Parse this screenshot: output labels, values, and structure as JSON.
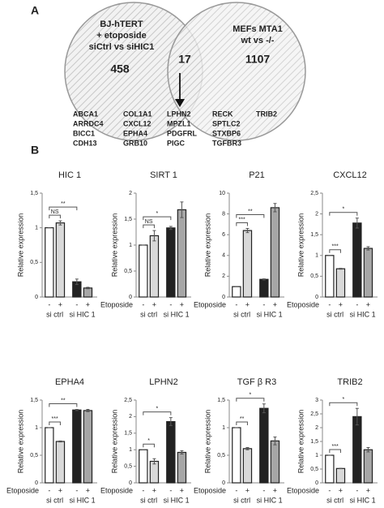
{
  "panel_labels": [
    "A",
    "B"
  ],
  "venn": {
    "left": {
      "label": [
        "BJ-hTERT",
        "+ etoposide",
        "siCtrl vs siHIC1"
      ],
      "count": "458"
    },
    "overlap": {
      "count": "17"
    },
    "right": {
      "label": [
        "MEFs MTA1",
        "wt vs -/-"
      ],
      "count": "1107"
    },
    "genes": [
      [
        "ABCA1",
        "ARRDC4",
        "BICC1",
        "CDH13"
      ],
      [
        "COL1A1",
        "CXCL12",
        "EPHA4",
        "GRB10"
      ],
      [
        "LPHN2",
        "MPZL1",
        "PDGFRL",
        "PIGC"
      ],
      [
        "RECK",
        "SPTLC2",
        "STXBP6",
        "TGFBR3"
      ],
      [
        "TRIB2"
      ]
    ]
  },
  "chart_data": [
    {
      "type": "bar",
      "title": "HIC 1",
      "ylabel": "Relative expression",
      "categories": [
        "-",
        "+",
        "-",
        "+"
      ],
      "groups": [
        "si ctrl",
        "si HIC 1"
      ],
      "values": [
        1.0,
        1.07,
        0.22,
        0.13
      ],
      "errors": [
        0,
        0.03,
        0.04,
        0.01
      ],
      "colors": [
        "#ffffff",
        "#d9d9d9",
        "#222222",
        "#a6a6a6"
      ],
      "significance": [
        "NS",
        "**"
      ],
      "ylim": [
        0,
        1.5
      ],
      "yticks": [
        0,
        {
          "value": 0.5,
          "label": "0,5"
        },
        1,
        {
          "value": 1.5,
          "label": "1,5"
        }
      ]
    },
    {
      "type": "bar",
      "title": "SIRT 1",
      "ylabel": "Relative expression",
      "x_label": "Etoposide",
      "categories": [
        "-",
        "+",
        "-",
        "+"
      ],
      "groups": [
        "si ctrl",
        "si HIC 1"
      ],
      "values": [
        1.0,
        1.18,
        1.33,
        1.68
      ],
      "errors": [
        0,
        0.1,
        0.03,
        0.15
      ],
      "colors": [
        "#ffffff",
        "#d9d9d9",
        "#222222",
        "#a6a6a6"
      ],
      "significance": [
        "NS",
        "*"
      ],
      "ylim": [
        0,
        2
      ],
      "yticks": [
        0,
        {
          "value": 0.5,
          "label": "0,5"
        },
        1,
        {
          "value": 1.5,
          "label": "1,5"
        },
        2
      ]
    },
    {
      "type": "bar",
      "title": "P21",
      "ylabel": "Relative expression",
      "x_label": "Etoposide",
      "categories": [
        "-",
        "+",
        "-",
        "+"
      ],
      "groups": [
        "si ctrl",
        "si HIC 1"
      ],
      "values": [
        1.0,
        6.4,
        1.7,
        8.6
      ],
      "errors": [
        0,
        0.2,
        0.05,
        0.4
      ],
      "colors": [
        "#ffffff",
        "#d9d9d9",
        "#222222",
        "#a6a6a6"
      ],
      "significance": [
        "***",
        "**"
      ],
      "ylim": [
        0,
        10
      ],
      "yticks": [
        0,
        2,
        4,
        6,
        8,
        10
      ]
    },
    {
      "type": "bar",
      "title": "CXCL12",
      "ylabel": "Relative expression",
      "x_label": "Etoposide",
      "categories": [
        "-",
        "+",
        "-",
        "+"
      ],
      "groups": [
        "si ctrl",
        "si HIC 1"
      ],
      "values": [
        1.0,
        0.68,
        1.78,
        1.17
      ],
      "errors": [
        0,
        0.01,
        0.12,
        0.04
      ],
      "colors": [
        "#ffffff",
        "#d9d9d9",
        "#222222",
        "#a6a6a6"
      ],
      "significance": [
        "***",
        "*"
      ],
      "ylim": [
        0,
        2.5
      ],
      "yticks": [
        0,
        {
          "value": 0.5,
          "label": "0,5"
        },
        1,
        {
          "value": 1.5,
          "label": "1,5"
        },
        2,
        {
          "value": 2.5,
          "label": "2,5"
        }
      ]
    },
    {
      "type": "bar",
      "title": "EPHA4",
      "ylabel": "Relative expression",
      "x_label": "Etoposide",
      "categories": [
        "-",
        "+",
        "-",
        "+"
      ],
      "groups": [
        "si ctrl",
        "si HIC 1"
      ],
      "values": [
        1.0,
        0.75,
        1.32,
        1.31
      ],
      "errors": [
        0,
        0.01,
        0.01,
        0.02
      ],
      "colors": [
        "#ffffff",
        "#d9d9d9",
        "#222222",
        "#a6a6a6"
      ],
      "significance": [
        "***",
        "**"
      ],
      "ylim": [
        0,
        1.5
      ],
      "yticks": [
        0,
        {
          "value": 0.5,
          "label": "0,5"
        },
        1,
        {
          "value": 1.5,
          "label": "1,5"
        }
      ]
    },
    {
      "type": "bar",
      "title": "LPHN2",
      "ylabel": "Relative expression",
      "x_label": "Etoposide",
      "categories": [
        "-",
        "+",
        "-",
        "+"
      ],
      "groups": [
        "si ctrl",
        "si HIC 1"
      ],
      "values": [
        1.0,
        0.65,
        1.85,
        0.92
      ],
      "errors": [
        0,
        0.08,
        0.12,
        0.05
      ],
      "colors": [
        "#ffffff",
        "#d9d9d9",
        "#222222",
        "#a6a6a6"
      ],
      "significance": [
        "*",
        "*"
      ],
      "ylim": [
        0,
        2.5
      ],
      "yticks": [
        0,
        {
          "value": 0.5,
          "label": "0,5"
        },
        1,
        {
          "value": 1.5,
          "label": "1,5"
        },
        2,
        {
          "value": 2.5,
          "label": "2,5"
        }
      ]
    },
    {
      "type": "bar",
      "title": "TGF β R3",
      "ylabel": "Relative expression",
      "x_label": "Etoposide",
      "categories": [
        "-",
        "+",
        "-",
        "+"
      ],
      "groups": [
        "si ctrl",
        "si HIC 1"
      ],
      "values": [
        1.0,
        0.62,
        1.35,
        0.76
      ],
      "errors": [
        0,
        0.02,
        0.08,
        0.07
      ],
      "colors": [
        "#ffffff",
        "#d9d9d9",
        "#222222",
        "#a6a6a6"
      ],
      "significance": [
        "**",
        "*"
      ],
      "ylim": [
        0,
        1.5
      ],
      "yticks": [
        0,
        {
          "value": 0.5,
          "label": "0,5"
        },
        1,
        {
          "value": 1.5,
          "label": "1,5"
        }
      ]
    },
    {
      "type": "bar",
      "title": "TRIB2",
      "ylabel": "Relative expression",
      "x_label": "Etoposide",
      "categories": [
        "-",
        "+",
        "-",
        "+"
      ],
      "groups": [
        "si ctrl",
        "si HIC 1"
      ],
      "values": [
        1.0,
        0.52,
        2.4,
        1.2
      ],
      "errors": [
        0,
        0.01,
        0.3,
        0.08
      ],
      "colors": [
        "#ffffff",
        "#d9d9d9",
        "#222222",
        "#a6a6a6"
      ],
      "significance": [
        "***",
        "*"
      ],
      "ylim": [
        0,
        3
      ],
      "yticks": [
        0,
        {
          "value": 0.5,
          "label": "0,5"
        },
        1,
        {
          "value": 1.5,
          "label": "1,5"
        },
        2,
        {
          "value": 2.5,
          "label": "2,5"
        },
        3
      ]
    }
  ]
}
